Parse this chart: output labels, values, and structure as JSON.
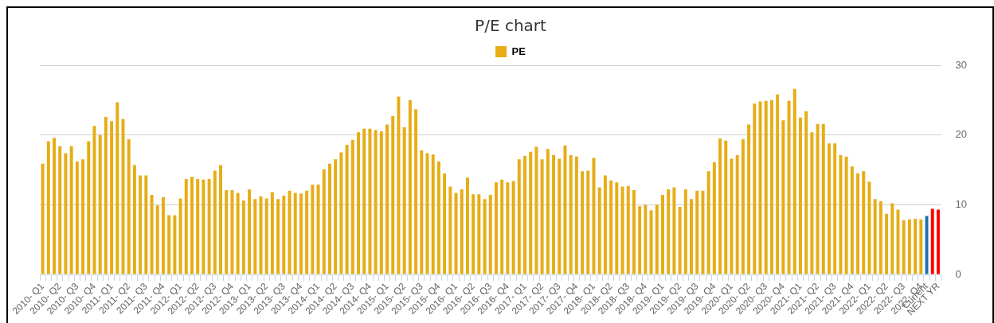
{
  "chart_data": {
    "type": "bar",
    "title": "P/E chart",
    "categories": [
      "2010- Q1",
      null,
      null,
      "2010- Q2",
      null,
      null,
      "2010- Q3",
      null,
      null,
      "2010- Q4",
      null,
      null,
      "2011- Q1",
      null,
      null,
      "2011- Q2",
      null,
      null,
      "2011- Q3",
      null,
      null,
      "2011- Q4",
      null,
      null,
      "2012- Q1",
      null,
      null,
      "2012- Q2",
      null,
      null,
      "2012- Q3",
      null,
      null,
      "2012- Q4",
      null,
      null,
      "2013- Q1",
      null,
      null,
      "2013- Q2",
      null,
      null,
      "2013- Q3",
      null,
      null,
      "2013- Q4",
      null,
      null,
      "2014- Q1",
      null,
      null,
      "2014- Q2",
      null,
      null,
      "2014- Q3",
      null,
      null,
      "2014- Q4",
      null,
      null,
      "2015- Q1",
      null,
      null,
      "2015- Q2",
      null,
      null,
      "2015- Q3",
      null,
      null,
      "2015- Q4",
      null,
      null,
      "2016- Q1",
      null,
      null,
      "2016- Q2",
      null,
      null,
      "2016- Q3",
      null,
      null,
      "2016- Q4",
      null,
      null,
      "2017- Q1",
      null,
      null,
      "2017- Q2",
      null,
      null,
      "2017- Q3",
      null,
      null,
      "2017- Q4",
      null,
      null,
      "2018- Q1",
      null,
      null,
      "2018- Q2",
      null,
      null,
      "2018- Q3",
      null,
      null,
      "2018- Q4",
      null,
      null,
      "2019- Q1",
      null,
      null,
      "2019- Q2",
      null,
      null,
      "2019- Q3",
      null,
      null,
      "2019- Q4",
      null,
      null,
      "2020- Q1",
      null,
      null,
      "2020- Q2",
      null,
      null,
      "2020- Q3",
      null,
      null,
      "2020- Q4",
      null,
      null,
      "2021- Q1",
      null,
      null,
      "2021- Q2",
      null,
      null,
      "2021- Q3",
      null,
      null,
      "2021- Q4",
      null,
      null,
      "2022- Q1",
      null,
      null,
      "2022- Q2",
      null,
      null,
      "2022- Q3",
      null,
      null,
      "2022- Q4",
      "Current",
      null,
      "NEXT YR"
    ],
    "series": [
      {
        "name": "PE",
        "color": "#e6ad16",
        "values": [
          15.9,
          19.1,
          19.6,
          18.4,
          17.4,
          18.4,
          16.2,
          16.5,
          19.1,
          21.3,
          20.0,
          22.6,
          22.0,
          24.7,
          22.3,
          19.4,
          15.7,
          14.2,
          14.2,
          11.4,
          9.9,
          11.1,
          8.5,
          8.5,
          10.9,
          13.7,
          14.0,
          13.7,
          13.6,
          13.7,
          14.9,
          15.7,
          12.1,
          12.1,
          11.7,
          10.6,
          12.2,
          10.8,
          11.2,
          10.9,
          11.8,
          10.8,
          11.3,
          12.0,
          11.7,
          11.6,
          12.0,
          12.9,
          12.9,
          15.1,
          15.9,
          16.5,
          17.5,
          18.6,
          19.3,
          20.4,
          20.9,
          20.9,
          20.7,
          20.5,
          21.5,
          22.7,
          25.5,
          21.1,
          25.0,
          23.7,
          17.8,
          17.4,
          17.2,
          16.2,
          14.5,
          12.6,
          11.7,
          12.2,
          13.9,
          11.5,
          11.5,
          10.8,
          11.4,
          13.2,
          13.6,
          13.2,
          13.4,
          16.5,
          17.0,
          17.6,
          18.3,
          16.5,
          18.0,
          17.1,
          16.6,
          18.5,
          17.1,
          16.9,
          14.8,
          14.9,
          16.7,
          12.5,
          14.2,
          13.5,
          13.2,
          12.6,
          12.7,
          12.1,
          9.8,
          10.0,
          9.2,
          10.0,
          11.4,
          12.2,
          12.5,
          9.7,
          12.2,
          10.8,
          12.0,
          12.0,
          14.8,
          16.1,
          19.5,
          19.2,
          16.6,
          17.1,
          19.4,
          21.5,
          24.5,
          24.8,
          24.9,
          25.0,
          25.8,
          22.1,
          24.9,
          26.6,
          22.5,
          23.4,
          20.4,
          21.6,
          21.6,
          18.8,
          18.8,
          17.1,
          16.9,
          15.5,
          14.5,
          14.8,
          13.3,
          10.8,
          10.5,
          8.7,
          10.2,
          9.3,
          7.8,
          7.9,
          8.0,
          7.9,
          8.4,
          9.4,
          9.3
        ],
        "colors": [
          "#e6ad16",
          "#e6ad16",
          "#e6ad16",
          "#e6ad16",
          "#e6ad16",
          "#e6ad16",
          "#e6ad16",
          "#e6ad16",
          "#e6ad16",
          "#e6ad16",
          "#e6ad16",
          "#e6ad16",
          "#e6ad16",
          "#e6ad16",
          "#e6ad16",
          "#e6ad16",
          "#e6ad16",
          "#e6ad16",
          "#e6ad16",
          "#e6ad16",
          "#e6ad16",
          "#e6ad16",
          "#e6ad16",
          "#e6ad16",
          "#e6ad16",
          "#e6ad16",
          "#e6ad16",
          "#e6ad16",
          "#e6ad16",
          "#e6ad16",
          "#e6ad16",
          "#e6ad16",
          "#e6ad16",
          "#e6ad16",
          "#e6ad16",
          "#e6ad16",
          "#e6ad16",
          "#e6ad16",
          "#e6ad16",
          "#e6ad16",
          "#e6ad16",
          "#e6ad16",
          "#e6ad16",
          "#e6ad16",
          "#e6ad16",
          "#e6ad16",
          "#e6ad16",
          "#e6ad16",
          "#e6ad16",
          "#e6ad16",
          "#e6ad16",
          "#e6ad16",
          "#e6ad16",
          "#e6ad16",
          "#e6ad16",
          "#e6ad16",
          "#e6ad16",
          "#e6ad16",
          "#e6ad16",
          "#e6ad16",
          "#e6ad16",
          "#e6ad16",
          "#e6ad16",
          "#e6ad16",
          "#e6ad16",
          "#e6ad16",
          "#e6ad16",
          "#e6ad16",
          "#e6ad16",
          "#e6ad16",
          "#e6ad16",
          "#e6ad16",
          "#e6ad16",
          "#e6ad16",
          "#e6ad16",
          "#e6ad16",
          "#e6ad16",
          "#e6ad16",
          "#e6ad16",
          "#e6ad16",
          "#e6ad16",
          "#e6ad16",
          "#e6ad16",
          "#e6ad16",
          "#e6ad16",
          "#e6ad16",
          "#e6ad16",
          "#e6ad16",
          "#e6ad16",
          "#e6ad16",
          "#e6ad16",
          "#e6ad16",
          "#e6ad16",
          "#e6ad16",
          "#e6ad16",
          "#e6ad16",
          "#e6ad16",
          "#e6ad16",
          "#e6ad16",
          "#e6ad16",
          "#e6ad16",
          "#e6ad16",
          "#e6ad16",
          "#e6ad16",
          "#e6ad16",
          "#e6ad16",
          "#e6ad16",
          "#e6ad16",
          "#e6ad16",
          "#e6ad16",
          "#e6ad16",
          "#e6ad16",
          "#e6ad16",
          "#e6ad16",
          "#e6ad16",
          "#e6ad16",
          "#e6ad16",
          "#e6ad16",
          "#e6ad16",
          "#e6ad16",
          "#e6ad16",
          "#e6ad16",
          "#e6ad16",
          "#e6ad16",
          "#e6ad16",
          "#e6ad16",
          "#e6ad16",
          "#e6ad16",
          "#e6ad16",
          "#e6ad16",
          "#e6ad16",
          "#e6ad16",
          "#e6ad16",
          "#e6ad16",
          "#e6ad16",
          "#e6ad16",
          "#e6ad16",
          "#e6ad16",
          "#e6ad16",
          "#e6ad16",
          "#e6ad16",
          "#e6ad16",
          "#e6ad16",
          "#e6ad16",
          "#e6ad16",
          "#e6ad16",
          "#e6ad16",
          "#e6ad16",
          "#e6ad16",
          "#e6ad16",
          "#e6ad16",
          "#e6ad16",
          "#e6ad16",
          "#e6ad16",
          "#1f70ad",
          "#ff0000",
          "#ff0000"
        ]
      }
    ],
    "ylim": [
      0,
      30
    ],
    "yticks": [
      0,
      10,
      20,
      30
    ],
    "grid": "y",
    "legend": "top"
  }
}
